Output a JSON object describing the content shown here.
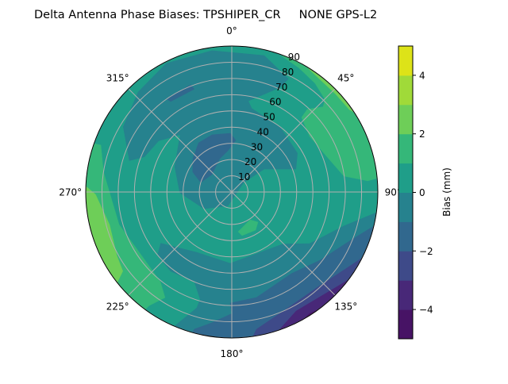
{
  "chart_data": {
    "type": "polar-contour",
    "title": "Delta Antenna Phase Biases: TPSHIPER_CR     NONE GPS-L2",
    "angular_axis": {
      "direction": "clockwise",
      "zero_location": "top",
      "tick_labels": [
        {
          "az": 0,
          "label": "0°"
        },
        {
          "az": 45,
          "label": "45°"
        },
        {
          "az": 90,
          "label": "90°"
        },
        {
          "az": 135,
          "label": "135°"
        },
        {
          "az": 180,
          "label": "180°"
        },
        {
          "az": 225,
          "label": "225°"
        },
        {
          "az": 270,
          "label": "270°"
        },
        {
          "az": 315,
          "label": "315°"
        }
      ]
    },
    "radial_axis": {
      "range": [
        0,
        90
      ],
      "tick_labels": [
        "10",
        "20",
        "30",
        "40",
        "50",
        "60",
        "70",
        "80",
        "90"
      ],
      "ticks": [
        10,
        20,
        30,
        40,
        50,
        60,
        70,
        80,
        90
      ]
    },
    "grid": true,
    "colorbar": {
      "label": "Bias (mm)",
      "range": [
        -5,
        5
      ],
      "levels": [
        -5,
        -4,
        -3,
        -2,
        -1,
        0,
        1,
        2,
        3,
        4,
        5
      ],
      "colors": [
        "#471365",
        "#482878",
        "#3e4a89",
        "#31688e",
        "#26828e",
        "#1f9e89",
        "#35b779",
        "#6ece58",
        "#a0da39",
        "#dde318"
      ],
      "tick_labels": [
        {
          "value": -4,
          "label": "−4"
        },
        {
          "value": -2,
          "label": "−2"
        },
        {
          "value": 0,
          "label": "0"
        },
        {
          "value": 2,
          "label": "2"
        },
        {
          "value": 4,
          "label": "4"
        }
      ]
    },
    "background_level": [
      0,
      1
    ],
    "regions": [
      {
        "level": [
          -1,
          0
        ],
        "points": [
          [
            287,
            66
          ],
          [
            301,
            78
          ],
          [
            317,
            84.5
          ],
          [
            333,
            89
          ],
          [
            352,
            88
          ],
          [
            13.4,
            86.5
          ],
          [
            26.6,
            78
          ],
          [
            24.8,
            71
          ],
          [
            10.3,
            57
          ],
          [
            13.4,
            53
          ],
          [
            36.6,
            50
          ],
          [
            59.4,
            47
          ],
          [
            70.3,
            42
          ],
          [
            54.7,
            24.5
          ],
          [
            51.3,
            9.4
          ],
          [
            195.5,
            9
          ],
          [
            239,
            20
          ],
          [
            269,
            32
          ],
          [
            294,
            38.5
          ],
          [
            318,
            47.5
          ],
          [
            305,
            55
          ],
          [
            292,
            58
          ]
        ]
      },
      {
        "level": [
          -1,
          0
        ],
        "points": [
          [
            96,
            90
          ],
          [
            107,
            72
          ],
          [
            123.6,
            57.5
          ],
          [
            135.4,
            45
          ],
          [
            162.6,
            41
          ],
          [
            181.3,
            44
          ],
          [
            210,
            43
          ],
          [
            234.2,
            54
          ],
          [
            229.6,
            60
          ],
          [
            217.6,
            61.7
          ],
          [
            202.6,
            60
          ],
          [
            196.4,
            69
          ],
          [
            196.8,
            74.6
          ],
          [
            205,
            90
          ],
          [
            190,
            90
          ],
          [
            175,
            90
          ],
          [
            160,
            90
          ],
          [
            145,
            90
          ],
          [
            130,
            90
          ],
          [
            115,
            90
          ],
          [
            100,
            90
          ]
        ]
      },
      {
        "level": [
          -2,
          -1
        ],
        "points": [
          [
            100,
            90
          ],
          [
            111.7,
            79.5
          ],
          [
            127.8,
            68.7
          ],
          [
            143.9,
            62.3
          ],
          [
            166.9,
            66.8
          ],
          [
            180.8,
            68.5
          ],
          [
            180,
            75
          ],
          [
            189.2,
            82
          ],
          [
            195.2,
            87.6
          ],
          [
            197,
            90
          ],
          [
            180,
            90
          ],
          [
            160,
            90
          ],
          [
            140,
            90
          ],
          [
            120,
            90
          ],
          [
            105,
            90
          ]
        ]
      },
      {
        "level": [
          -3,
          -2
        ],
        "points": [
          [
            111,
            90
          ],
          [
            123.5,
            85
          ],
          [
            138,
            79
          ],
          [
            156.6,
            80
          ],
          [
            169.8,
            86
          ],
          [
            174,
            90
          ],
          [
            160,
            90
          ],
          [
            145,
            90
          ],
          [
            130,
            90
          ],
          [
            118,
            90
          ]
        ]
      },
      {
        "level": [
          -4,
          -3
        ],
        "points": [
          [
            119.4,
            90
          ],
          [
            132.5,
            87
          ],
          [
            151.6,
            83.4
          ],
          [
            167,
            90
          ],
          [
            155,
            90
          ],
          [
            140,
            90
          ],
          [
            128,
            90
          ]
        ]
      },
      {
        "level": [
          -5,
          -4
        ],
        "points": [
          [
            131.8,
            90
          ],
          [
            147.4,
            89
          ],
          [
            161,
            90
          ],
          [
            150,
            90
          ],
          [
            140,
            90
          ]
        ]
      },
      {
        "level": [
          -2,
          -1
        ],
        "points": [
          [
            326,
            36.6
          ],
          [
            341,
            37.3
          ],
          [
            358.5,
            36.2
          ],
          [
            4.4,
            32
          ],
          [
            354.5,
            25.5
          ],
          [
            340,
            21.8
          ],
          [
            311,
            16.3
          ],
          [
            287,
            20
          ],
          [
            297,
            27
          ],
          [
            310.7,
            31.6
          ]
        ]
      },
      {
        "level": [
          -2,
          -1
        ],
        "points": [
          [
            325,
            70
          ],
          [
            339,
            70.8
          ],
          [
            340,
            67.5
          ],
          [
            326,
            67.3
          ]
        ]
      },
      {
        "level": [
          1,
          2
        ],
        "points": [
          [
            12,
            90
          ],
          [
            21,
            89
          ],
          [
            28.4,
            87
          ],
          [
            37.5,
            84.4
          ],
          [
            45.2,
            81
          ],
          [
            47,
            77
          ],
          [
            42.4,
            69
          ],
          [
            43.1,
            63
          ],
          [
            54.5,
            59
          ],
          [
            68.3,
            62
          ],
          [
            81.9,
            69.7
          ],
          [
            85.3,
            84
          ],
          [
            84,
            90
          ],
          [
            70,
            90
          ],
          [
            55,
            90
          ],
          [
            40,
            90
          ],
          [
            25,
            90
          ]
        ]
      },
      {
        "level": [
          2,
          3
        ],
        "points": [
          [
            22,
            90
          ],
          [
            32.5,
            89.3
          ],
          [
            46.6,
            88
          ],
          [
            55,
            88.5
          ],
          [
            63,
            90
          ],
          [
            50,
            90
          ],
          [
            35,
            90
          ]
        ]
      },
      {
        "level": [
          1,
          2
        ],
        "points": [
          [
            217,
            90
          ],
          [
            216,
            86.5
          ],
          [
            212.3,
            77
          ],
          [
            218.5,
            70.7
          ],
          [
            235,
            68
          ],
          [
            253.9,
            72.3
          ],
          [
            278.8,
            80
          ],
          [
            289.7,
            85.7
          ],
          [
            289,
            90
          ],
          [
            275,
            90
          ],
          [
            260,
            90
          ],
          [
            245,
            90
          ],
          [
            230,
            90
          ]
        ]
      },
      {
        "level": [
          2,
          3
        ],
        "points": [
          [
            275,
            90
          ],
          [
            269,
            84
          ],
          [
            255,
            78
          ],
          [
            241,
            81
          ],
          [
            234,
            83
          ],
          [
            230,
            90
          ],
          [
            245,
            90
          ],
          [
            260,
            90
          ]
        ]
      },
      {
        "level": [
          1,
          2
        ],
        "points": [
          [
            170.9,
            24.8
          ],
          [
            146.7,
            20.5
          ],
          [
            139,
            24.6
          ],
          [
            148,
            27.7
          ],
          [
            166.7,
            27.6
          ]
        ]
      }
    ]
  }
}
